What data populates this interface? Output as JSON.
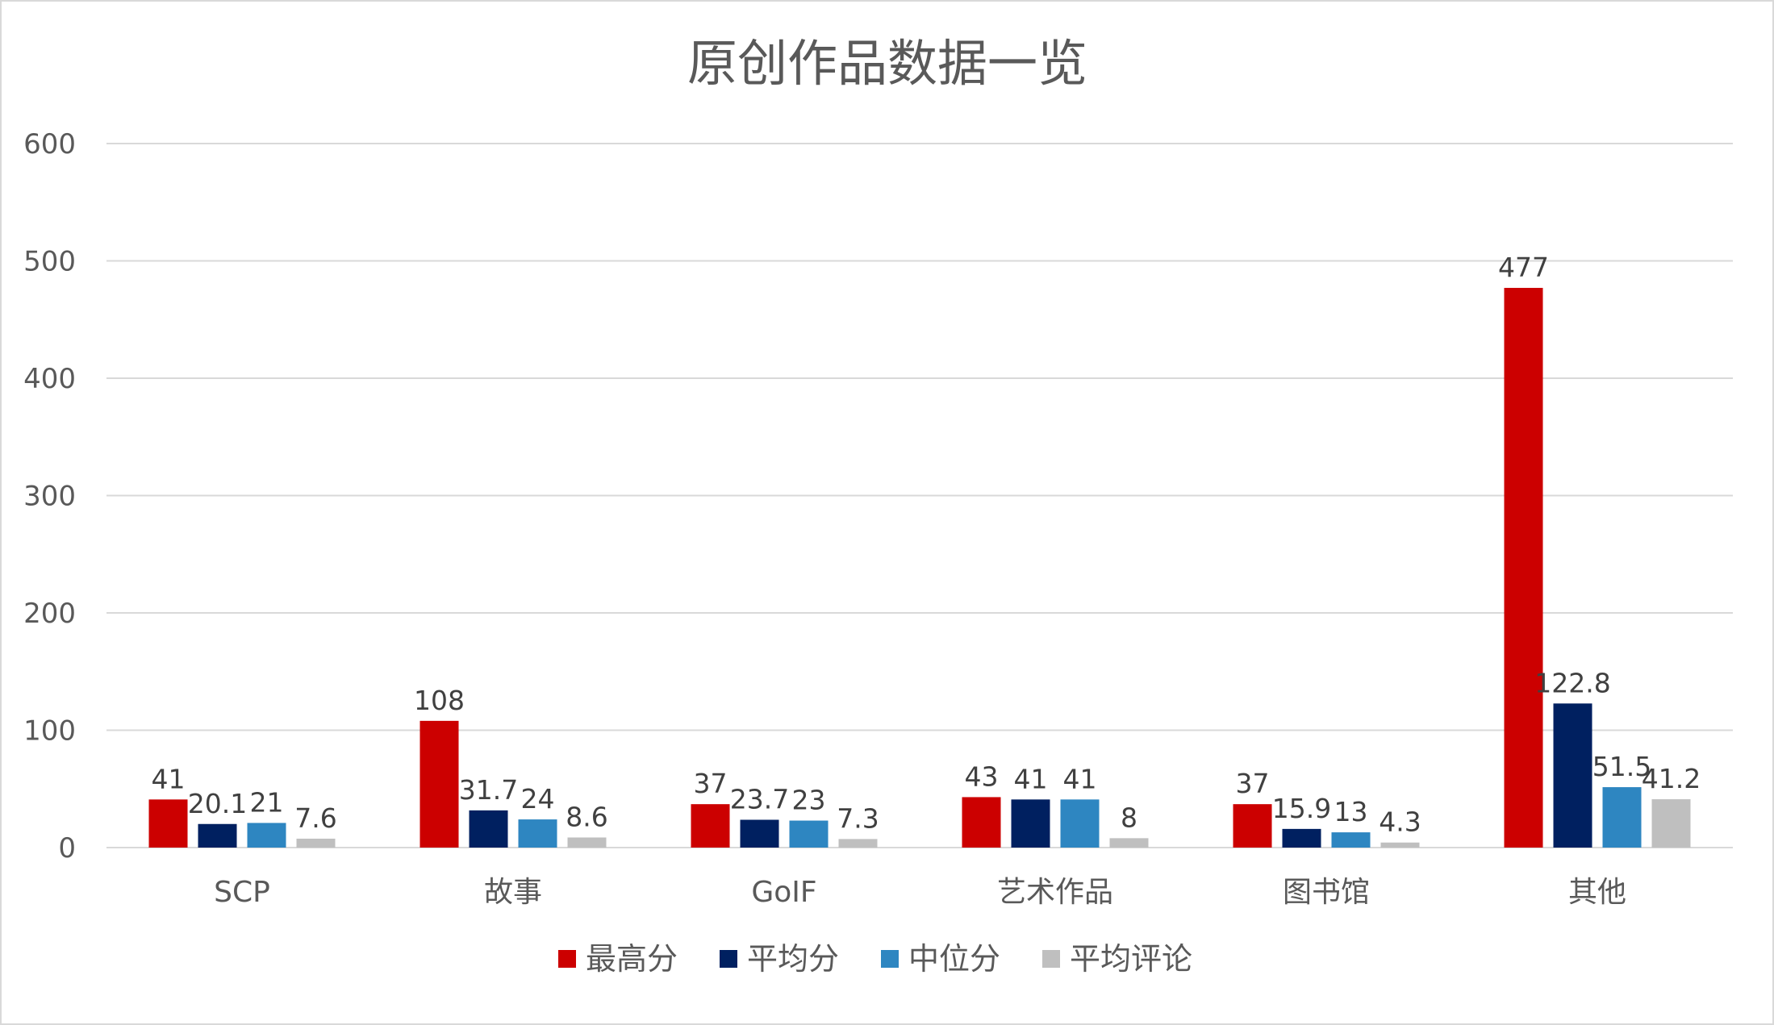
{
  "chart_data": {
    "type": "bar",
    "title": "原创作品数据一览",
    "categories": [
      "SCP",
      "故事",
      "GoIF",
      "艺术作品",
      "图书馆",
      "其他"
    ],
    "series": [
      {
        "name": "最高分",
        "color": "#cc0000",
        "values": [
          41,
          108,
          37,
          43,
          37,
          477
        ]
      },
      {
        "name": "平均分",
        "color": "#002060",
        "values": [
          20.1,
          31.7,
          23.7,
          41,
          15.9,
          122.8
        ]
      },
      {
        "name": "中位分",
        "color": "#2e86c1",
        "values": [
          21,
          24,
          23,
          41,
          13,
          51.5
        ]
      },
      {
        "name": "平均评论",
        "color": "#bfbfbf",
        "values": [
          7.6,
          8.6,
          7.3,
          8,
          4.3,
          41.2
        ]
      }
    ],
    "ylim": [
      0,
      600
    ],
    "yticks": [
      0,
      100,
      200,
      300,
      400,
      500,
      600
    ],
    "grid": true,
    "legend_position": "bottom",
    "data_labels": true
  }
}
